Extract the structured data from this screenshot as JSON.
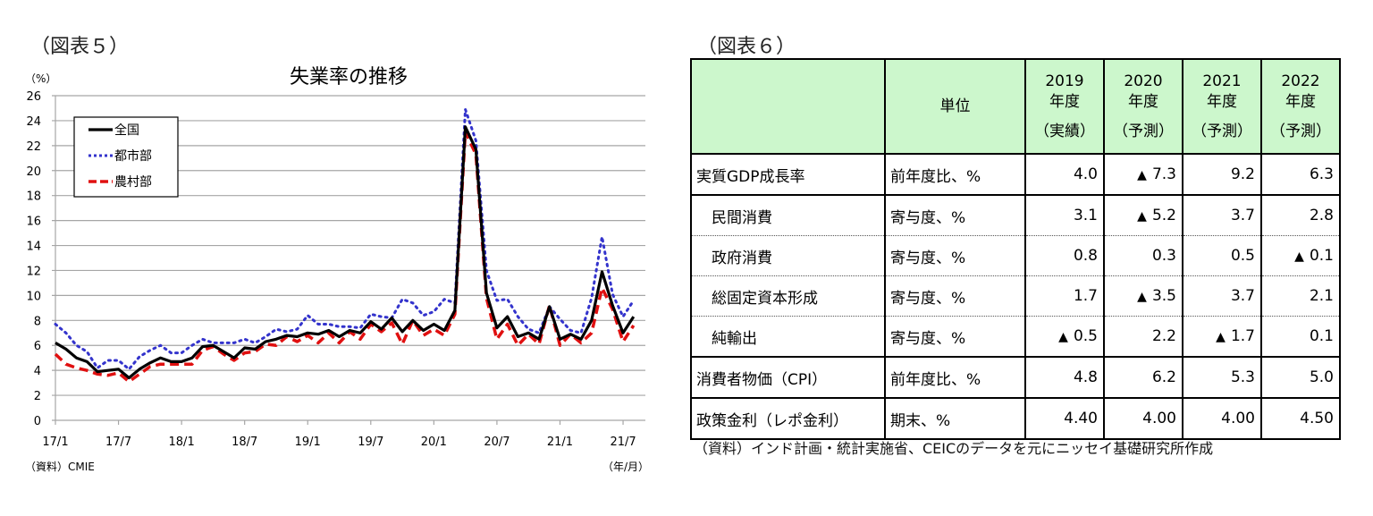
{
  "left_figure": {
    "label": "（図表５）",
    "unit_label": "（%）",
    "source": "（資料）CMIE",
    "x_unit": "（年/月）"
  },
  "right_figure": {
    "label": "（図表６）",
    "source": "（資料）インド計画・統計実施省、CEICのデータを元にニッセイ基礎研究所作成",
    "table": {
      "header": {
        "unit": "単位",
        "years": [
          {
            "year": "2019",
            "suffix": "年度",
            "kind": "（実績）"
          },
          {
            "year": "2020",
            "suffix": "年度",
            "kind": "（予測）"
          },
          {
            "year": "2021",
            "suffix": "年度",
            "kind": "（予測）"
          },
          {
            "year": "2022",
            "suffix": "年度",
            "kind": "（予測）"
          }
        ]
      },
      "rows": [
        {
          "label": "実質GDP成長率",
          "unit": "前年度比、%",
          "values": [
            "4.0",
            "▲ 7.3",
            "9.2",
            "6.3"
          ],
          "sub": false
        },
        {
          "label": "民間消費",
          "unit": "寄与度、%",
          "values": [
            "3.1",
            "▲ 5.2",
            "3.7",
            "2.8"
          ],
          "sub": true
        },
        {
          "label": "政府消費",
          "unit": "寄与度、%",
          "values": [
            "0.8",
            "0.3",
            "0.5",
            "▲ 0.1"
          ],
          "sub": true
        },
        {
          "label": "総固定資本形成",
          "unit": "寄与度、%",
          "values": [
            "1.7",
            "▲ 3.5",
            "3.7",
            "2.1"
          ],
          "sub": true
        },
        {
          "label": "純輸出",
          "unit": "寄与度、%",
          "values": [
            "▲ 0.5",
            "2.2",
            "▲ 1.7",
            "0.1"
          ],
          "sub": true
        },
        {
          "label": "消費者物価（CPI）",
          "unit": "前年度比、%",
          "values": [
            "4.8",
            "6.2",
            "5.3",
            "5.0"
          ],
          "sub": false
        },
        {
          "label": "政策金利（レポ金利）",
          "unit": "期末、%",
          "values": [
            "4.40",
            "4.00",
            "4.00",
            "4.50"
          ],
          "sub": false
        }
      ]
    }
  },
  "colors": {
    "national": "#000000",
    "urban": "#3333cc",
    "rural": "#e01010",
    "grid": "#a6a6a6",
    "table_header_bg": "#ccf7cc"
  },
  "chart_data": {
    "type": "line",
    "title": "失業率の推移",
    "xlabel": "（年/月）",
    "ylabel": "（%）",
    "ylim": [
      0,
      26
    ],
    "yticks": [
      0,
      2,
      4,
      6,
      8,
      10,
      12,
      14,
      16,
      18,
      20,
      22,
      24,
      26
    ],
    "xtick_labels": [
      "17/1",
      "17/7",
      "18/1",
      "18/7",
      "19/1",
      "19/7",
      "20/1",
      "20/7",
      "21/1",
      "21/7"
    ],
    "grid": true,
    "legend_position": "upper-left",
    "x": [
      "17/1",
      "17/2",
      "17/3",
      "17/4",
      "17/5",
      "17/6",
      "17/7",
      "17/8",
      "17/9",
      "17/10",
      "17/11",
      "17/12",
      "18/1",
      "18/2",
      "18/3",
      "18/4",
      "18/5",
      "18/6",
      "18/7",
      "18/8",
      "18/9",
      "18/10",
      "18/11",
      "18/12",
      "19/1",
      "19/2",
      "19/3",
      "19/4",
      "19/5",
      "19/6",
      "19/7",
      "19/8",
      "19/9",
      "19/10",
      "19/11",
      "19/12",
      "20/1",
      "20/2",
      "20/3",
      "20/4",
      "20/5",
      "20/6",
      "20/7",
      "20/8",
      "20/9",
      "20/10",
      "20/11",
      "20/12",
      "21/1",
      "21/2",
      "21/3",
      "21/4",
      "21/5",
      "21/6",
      "21/7",
      "21/8"
    ],
    "series": [
      {
        "name": "全国",
        "style": "solid",
        "values": [
          6.2,
          5.7,
          5.0,
          4.7,
          3.9,
          4.0,
          4.1,
          3.4,
          4.1,
          4.6,
          5.0,
          4.7,
          4.7,
          5.0,
          5.9,
          6.0,
          5.5,
          5.0,
          5.8,
          5.7,
          6.3,
          6.5,
          6.8,
          6.7,
          7.0,
          6.9,
          7.2,
          6.7,
          7.2,
          7.0,
          7.9,
          7.3,
          8.2,
          7.1,
          8.0,
          7.2,
          7.7,
          7.2,
          8.8,
          23.5,
          21.7,
          10.2,
          7.4,
          8.3,
          6.7,
          7.0,
          6.5,
          9.1,
          6.5,
          6.9,
          6.5,
          8.0,
          11.9,
          9.2,
          7.0,
          8.3
        ]
      },
      {
        "name": "都市部",
        "style": "dotted",
        "values": [
          7.7,
          7.0,
          6.0,
          5.5,
          4.2,
          4.8,
          4.8,
          4.1,
          5.1,
          5.6,
          6.0,
          5.4,
          5.4,
          6.0,
          6.5,
          6.2,
          6.2,
          6.2,
          6.5,
          6.2,
          6.7,
          7.3,
          7.1,
          7.3,
          8.4,
          7.7,
          7.7,
          7.5,
          7.5,
          7.4,
          8.5,
          8.3,
          8.2,
          9.7,
          9.4,
          8.4,
          8.7,
          9.7,
          9.4,
          24.9,
          22.4,
          12.0,
          9.6,
          9.7,
          8.3,
          7.3,
          7.0,
          9.1,
          8.1,
          7.2,
          7.0,
          9.8,
          14.7,
          10.1,
          8.3,
          9.6
        ]
      },
      {
        "name": "農村部",
        "style": "dashed",
        "values": [
          5.3,
          4.5,
          4.2,
          4.0,
          3.7,
          3.6,
          3.8,
          3.1,
          3.7,
          4.3,
          4.5,
          4.5,
          4.5,
          4.5,
          5.6,
          5.9,
          5.3,
          4.8,
          5.4,
          5.5,
          6.1,
          6.0,
          6.7,
          6.3,
          6.8,
          6.2,
          7.0,
          6.2,
          7.1,
          6.5,
          7.7,
          7.1,
          7.8,
          6.1,
          8.0,
          6.8,
          7.3,
          6.8,
          8.5,
          23.1,
          21.3,
          9.8,
          6.5,
          7.7,
          6.0,
          6.9,
          6.1,
          9.2,
          6.0,
          6.9,
          6.2,
          7.0,
          10.6,
          8.9,
          6.3,
          7.6
        ]
      }
    ]
  }
}
